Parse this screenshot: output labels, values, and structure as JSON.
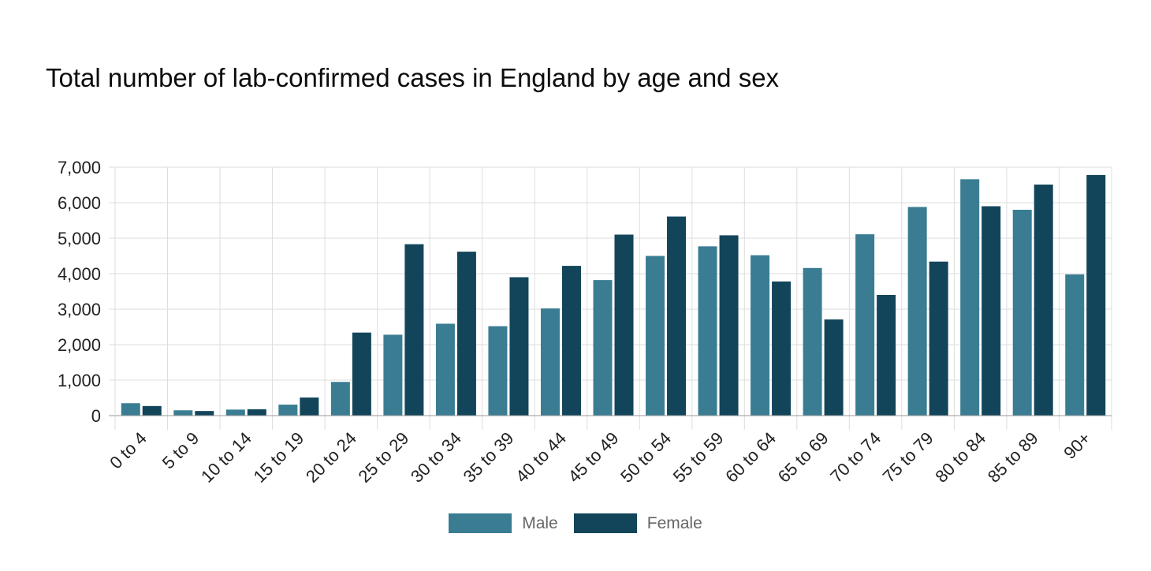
{
  "chart_data": {
    "type": "bar",
    "title": "Total number of lab-confirmed cases in England by age and sex",
    "xlabel": "",
    "ylabel": "",
    "ylim": [
      0,
      7000
    ],
    "yticks": [
      0,
      1000,
      2000,
      3000,
      4000,
      5000,
      6000,
      7000
    ],
    "ytick_labels": [
      "0",
      "1,000",
      "2,000",
      "3,000",
      "4,000",
      "5,000",
      "6,000",
      "7,000"
    ],
    "grid": true,
    "legend_position": "bottom-center",
    "categories": [
      "0 to 4",
      "5 to 9",
      "10 to 14",
      "15 to 19",
      "20 to 24",
      "25 to 29",
      "30 to 34",
      "35 to 39",
      "40 to 44",
      "45 to 49",
      "50 to 54",
      "55 to 59",
      "60 to 64",
      "65 to 69",
      "70 to 74",
      "75 to 79",
      "80 to 84",
      "85 to 89",
      "90+"
    ],
    "series": [
      {
        "name": "Male",
        "color": "#3a7d93",
        "values": [
          350,
          150,
          170,
          310,
          950,
          2280,
          2590,
          2520,
          3020,
          3820,
          4500,
          4770,
          4520,
          4160,
          5110,
          5880,
          6660,
          5800,
          3980
        ]
      },
      {
        "name": "Female",
        "color": "#12455a",
        "values": [
          270,
          130,
          180,
          510,
          2340,
          4830,
          4620,
          3900,
          4220,
          5100,
          5610,
          5080,
          3780,
          2710,
          3400,
          4340,
          5900,
          6510,
          6780
        ]
      }
    ]
  }
}
